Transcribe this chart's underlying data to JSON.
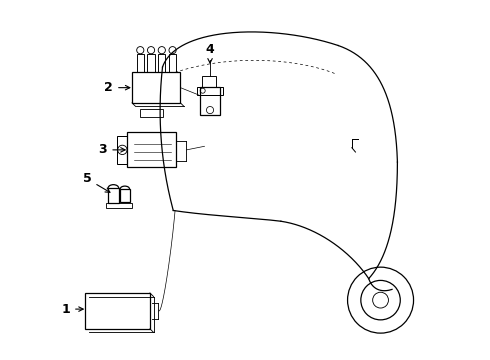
{
  "bg_color": "#ffffff",
  "line_color": "#000000",
  "label_color": "#000000"
}
